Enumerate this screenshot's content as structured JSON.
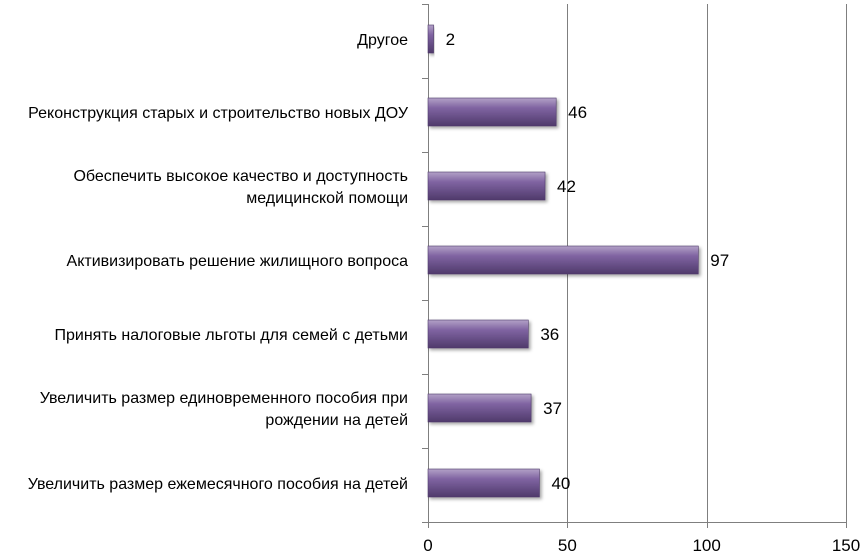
{
  "chart_data": {
    "type": "bar",
    "orientation": "horizontal",
    "categories": [
      "Другое",
      "Реконструкция старых и строительство новых ДОУ",
      "Обеспечить высокое качество и доступность медицинской помощи",
      "Активизировать решение жилищного вопроса",
      "Принять налоговые льготы для семей с детьми",
      "Увеличить размер единовременного пособия при рождении на детей",
      "Увеличить размер ежемесячного пособия на детей"
    ],
    "category_lines": [
      [
        "Другое"
      ],
      [
        "Реконструкция старых и строительство новых ДОУ"
      ],
      [
        "Обеспечить высокое качество и доступность",
        "медицинской помощи"
      ],
      [
        "Активизировать решение жилищного вопроса"
      ],
      [
        "Принять налоговые льготы для семей с детьми"
      ],
      [
        "Увеличить размер единовременного пособия при",
        "рождении на детей"
      ],
      [
        "Увеличить размер ежемесячного пособия на детей"
      ]
    ],
    "values": [
      2,
      46,
      42,
      97,
      36,
      37,
      40
    ],
    "data_labels": [
      "2",
      "46",
      "42",
      "97",
      "36",
      "37",
      "40"
    ],
    "xlim": [
      0,
      150
    ],
    "x_ticks": [
      0,
      50,
      100,
      150
    ],
    "x_tick_labels": [
      "0",
      "50",
      "100",
      "150"
    ],
    "grid": true,
    "legend": "none",
    "colors": {
      "bar_fill": "#8064a2",
      "bar_highlight": "#b3a2c7",
      "bar_shadow": "#4f3a6b",
      "grid": "#7f7f7f"
    }
  }
}
